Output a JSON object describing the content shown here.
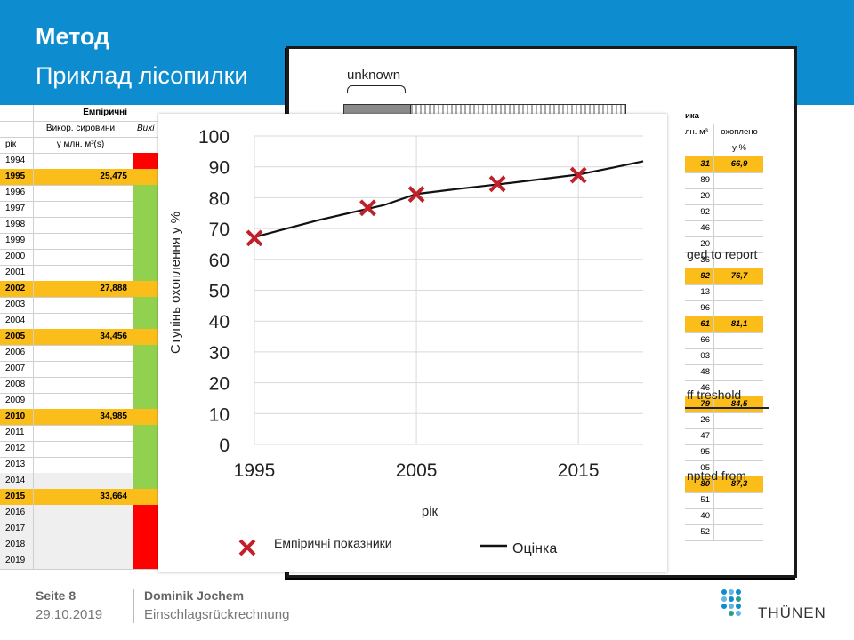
{
  "header": {
    "title": "Метод",
    "subtitle": "Приклад лісопилки"
  },
  "sheet": {
    "group_header": "Емпіричні",
    "col1_header": "Викор. сировини",
    "col2_header": "Вихі",
    "row_label": "рік",
    "unit_label": "у млн. м³(s)",
    "rows": [
      {
        "year": "1994",
        "value": "",
        "status": "red",
        "hl": false
      },
      {
        "year": "1995",
        "value": "25,475",
        "status": "orange",
        "hl": true
      },
      {
        "year": "1996",
        "value": "",
        "status": "green",
        "hl": false
      },
      {
        "year": "1997",
        "value": "",
        "status": "green",
        "hl": false
      },
      {
        "year": "1998",
        "value": "",
        "status": "green",
        "hl": false
      },
      {
        "year": "1999",
        "value": "",
        "status": "green",
        "hl": false
      },
      {
        "year": "2000",
        "value": "",
        "status": "green",
        "hl": false
      },
      {
        "year": "2001",
        "value": "",
        "status": "green",
        "hl": false
      },
      {
        "year": "2002",
        "value": "27,888",
        "status": "orange",
        "hl": true
      },
      {
        "year": "2003",
        "value": "",
        "status": "green",
        "hl": false
      },
      {
        "year": "2004",
        "value": "",
        "status": "green",
        "hl": false
      },
      {
        "year": "2005",
        "value": "34,456",
        "status": "orange",
        "hl": true
      },
      {
        "year": "2006",
        "value": "",
        "status": "green",
        "hl": false
      },
      {
        "year": "2007",
        "value": "",
        "status": "green",
        "hl": false
      },
      {
        "year": "2008",
        "value": "",
        "status": "green",
        "hl": false
      },
      {
        "year": "2009",
        "value": "",
        "status": "green",
        "hl": false
      },
      {
        "year": "2010",
        "value": "34,985",
        "status": "orange",
        "hl": true
      },
      {
        "year": "2011",
        "value": "",
        "status": "green",
        "hl": false
      },
      {
        "year": "2012",
        "value": "",
        "status": "green",
        "hl": false
      },
      {
        "year": "2013",
        "value": "",
        "status": "green",
        "hl": false
      },
      {
        "year": "2014",
        "value": "",
        "status": "green",
        "hl": false
      },
      {
        "year": "2015",
        "value": "33,664",
        "status": "orange",
        "hl": true
      },
      {
        "year": "2016",
        "value": "",
        "status": "red",
        "hl": false
      },
      {
        "year": "2017",
        "value": "",
        "status": "red",
        "hl": false
      },
      {
        "year": "2018",
        "value": "",
        "status": "red",
        "hl": false
      },
      {
        "year": "2019",
        "value": "",
        "status": "red",
        "hl": false
      }
    ]
  },
  "doc": {
    "unknown_label": "unknown",
    "right_header": "ика",
    "right_sub_a": "лн. м³",
    "right_sub_b": "охоплено",
    "right_unit": "у %",
    "right_rows": [
      {
        "a": "31",
        "b": "66,9",
        "hl": true
      },
      {
        "a": "89",
        "b": "",
        "hl": false
      },
      {
        "a": "20",
        "b": "",
        "hl": false
      },
      {
        "a": "92",
        "b": "",
        "hl": false
      },
      {
        "a": "46",
        "b": "",
        "hl": false
      },
      {
        "a": "20",
        "b": "",
        "hl": false
      },
      {
        "a": "36",
        "b": "",
        "hl": false
      },
      {
        "a": "92",
        "b": "76,7",
        "hl": true
      },
      {
        "a": "13",
        "b": "",
        "hl": false
      },
      {
        "a": "96",
        "b": "",
        "hl": false
      },
      {
        "a": "61",
        "b": "81,1",
        "hl": true
      },
      {
        "a": "66",
        "b": "",
        "hl": false
      },
      {
        "a": "03",
        "b": "",
        "hl": false
      },
      {
        "a": "48",
        "b": "",
        "hl": false
      },
      {
        "a": "46",
        "b": "",
        "hl": false
      },
      {
        "a": "79",
        "b": "84,5",
        "hl": true
      },
      {
        "a": "26",
        "b": "",
        "hl": false
      },
      {
        "a": "47",
        "b": "",
        "hl": false
      },
      {
        "a": "95",
        "b": "",
        "hl": false
      },
      {
        "a": "05",
        "b": "",
        "hl": false
      },
      {
        "a": "80",
        "b": "87,3",
        "hl": true
      },
      {
        "a": "51",
        "b": "",
        "hl": false
      },
      {
        "a": "40",
        "b": "",
        "hl": false
      },
      {
        "a": "52",
        "b": "",
        "hl": false
      }
    ],
    "note_report": "ged to report",
    "note_treshold": "ff treshold",
    "note_from": "npted from"
  },
  "chart_data": {
    "type": "line",
    "ylabel": "Ступінь охоплення у %",
    "xlabel": "рік",
    "ylim": [
      0,
      100
    ],
    "xlim": [
      1995,
      2019
    ],
    "y_ticks": [
      0,
      10,
      20,
      30,
      40,
      50,
      60,
      70,
      80,
      90,
      100
    ],
    "x_ticks": [
      1995,
      2005,
      2015
    ],
    "grid": true,
    "legend_position": "bottom",
    "series": [
      {
        "name": "Емпіричні показники",
        "kind": "markers",
        "marker": "x",
        "color": "#c0202a",
        "x": [
          1995,
          2002,
          2005,
          2010,
          2015
        ],
        "y": [
          66.9,
          76.7,
          81.1,
          84.5,
          87.3
        ]
      },
      {
        "name": "Оцінка",
        "kind": "line",
        "color": "#111111",
        "x": [
          1995,
          1997,
          1999,
          2001,
          2003,
          2005,
          2007,
          2009,
          2011,
          2013,
          2015,
          2017,
          2019
        ],
        "y": [
          67.2,
          70.0,
          72.8,
          75.2,
          77.6,
          81.2,
          82.5,
          83.7,
          84.9,
          86.2,
          87.5,
          89.6,
          91.8
        ]
      }
    ]
  },
  "footer": {
    "page": "Seite 8",
    "date": "29.10.2019",
    "author": "Dominik Jochem",
    "topic": "Einschlagsrückrechnung",
    "logo": "THÜNEN"
  },
  "colors": {
    "header_bg": "#0d8ccf",
    "highlight": "#fbbd1a",
    "green": "#92d050",
    "red": "#ff0000",
    "marker": "#c0202a"
  }
}
